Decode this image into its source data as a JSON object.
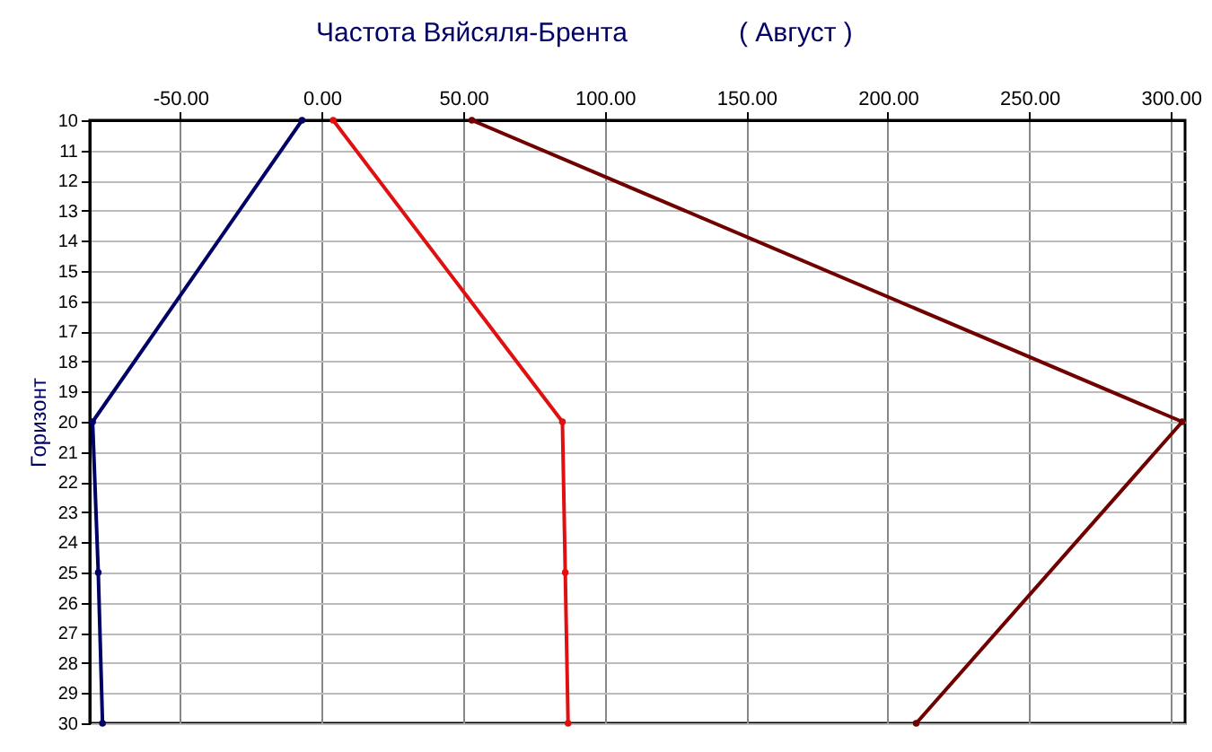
{
  "chart_data": {
    "type": "line",
    "title": "Частота Вяйсяля-Брента",
    "subtitle": "( Август )",
    "ylabel": "Горизонт",
    "xlim": [
      -82,
      305
    ],
    "ylim": [
      30,
      10
    ],
    "xticks": [
      {
        "value": -50,
        "label": "-50.00"
      },
      {
        "value": 0,
        "label": "0.00"
      },
      {
        "value": 50,
        "label": "50.00"
      },
      {
        "value": 100,
        "label": "100.00"
      },
      {
        "value": 150,
        "label": "150.00"
      },
      {
        "value": 200,
        "label": "200.00"
      },
      {
        "value": 250,
        "label": "250.00"
      },
      {
        "value": 300,
        "label": "300.00"
      }
    ],
    "yticks": [
      10,
      11,
      12,
      13,
      14,
      15,
      16,
      17,
      18,
      19,
      20,
      21,
      22,
      23,
      24,
      25,
      26,
      27,
      28,
      29,
      30
    ],
    "grid": true,
    "marker": "circle",
    "line_style": "solid",
    "series": [
      {
        "color": "#000066",
        "x": [
          -7,
          -81,
          -79,
          -77.5
        ],
        "values": [
          10,
          20,
          25,
          30
        ]
      },
      {
        "color": "#e01010",
        "x": [
          4,
          85,
          86,
          87
        ],
        "values": [
          10,
          20,
          25,
          30
        ]
      },
      {
        "color": "#700000",
        "x": [
          53,
          304,
          210
        ],
        "values": [
          10,
          20,
          30
        ]
      }
    ]
  }
}
